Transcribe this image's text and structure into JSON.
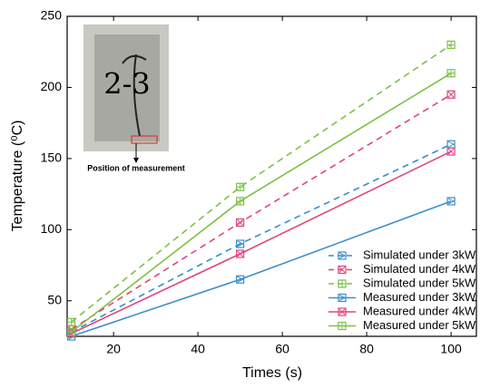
{
  "chart_data": {
    "type": "line",
    "xlabel": "Times (s)",
    "ylabel": "Temperature (⁰C)",
    "annotation": "Position of measurement",
    "x": [
      10,
      50,
      100
    ],
    "xlim": [
      9,
      106
    ],
    "xticks": [
      20,
      40,
      60,
      80,
      100
    ],
    "ylim": [
      25,
      250
    ],
    "yticks": [
      50,
      100,
      150,
      200,
      250
    ],
    "legend": "lower right",
    "series": [
      {
        "name": "Simulated under 3kW",
        "color": "#3a8fc8",
        "dash": true,
        "values": [
          28,
          90,
          160
        ]
      },
      {
        "name": "Simulated under 4kW",
        "color": "#e0457f",
        "dash": true,
        "values": [
          30,
          105,
          195
        ]
      },
      {
        "name": "Simulated under 5kW",
        "color": "#7dc046",
        "dash": true,
        "values": [
          35,
          130,
          230
        ]
      },
      {
        "name": "Measured under 3kW",
        "color": "#3a8fc8",
        "dash": false,
        "values": [
          25,
          65,
          120
        ]
      },
      {
        "name": "Measured under 4kW",
        "color": "#e0457f",
        "dash": false,
        "values": [
          27,
          83,
          155
        ]
      },
      {
        "name": "Measured under 5kW",
        "color": "#7dc046",
        "dash": false,
        "values": [
          28,
          120,
          210
        ]
      }
    ]
  }
}
